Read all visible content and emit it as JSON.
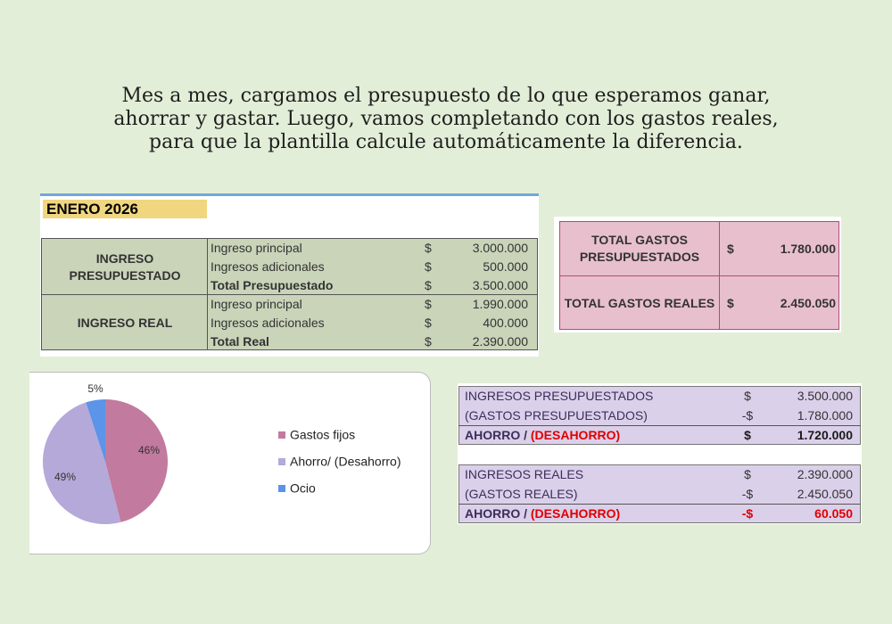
{
  "intro": [
    "Mes a mes, cargamos el presupuesto de lo que esperamos ganar,",
    "ahorrar y gastar. Luego, vamos completando con los gastos reales,",
    "para que la plantilla calcule automáticamente la diferencia."
  ],
  "income_table": {
    "title": "ENERO 2026",
    "groups": [
      {
        "label": "INGRESO PRESUPUESTADO",
        "rows": [
          {
            "label": "Ingreso principal",
            "currency": "$",
            "amount": "3.000.000"
          },
          {
            "label": "Ingresos adicionales",
            "currency": "$",
            "amount": "500.000"
          },
          {
            "label": "Total Presupuestado",
            "currency": "$",
            "amount": "3.500.000"
          }
        ]
      },
      {
        "label": "INGRESO REAL",
        "rows": [
          {
            "label": "Ingreso principal",
            "currency": "$",
            "amount": "1.990.000"
          },
          {
            "label": "Ingresos adicionales",
            "currency": "$",
            "amount": "400.000"
          },
          {
            "label": "Total Real",
            "currency": "$",
            "amount": "2.390.000"
          }
        ]
      }
    ]
  },
  "totals_table": {
    "rows": [
      {
        "label": "TOTAL GASTOS PRESUPUESTADOS",
        "currency": "$",
        "amount": "1.780.000"
      },
      {
        "label": "TOTAL GASTOS REALES",
        "currency": "$",
        "amount": "2.450.050"
      }
    ]
  },
  "summary": {
    "blocks": [
      {
        "rows": [
          {
            "label": "INGRESOS PRESUPUESTADOS",
            "currency": "$",
            "amount": "3.500.000"
          },
          {
            "label": "(GASTOS PRESUPUESTADOS)",
            "currency": "-$",
            "amount": "1.780.000"
          }
        ],
        "result": {
          "label": "AHORRO / ",
          "label_red": "(DESAHORRO)",
          "currency": "$",
          "amount": "1.720.000",
          "color": "#1a1a1a"
        }
      },
      {
        "rows": [
          {
            "label": "INGRESOS REALES",
            "currency": "$",
            "amount": "2.390.000"
          },
          {
            "label": "(GASTOS REALES)",
            "currency": "-$",
            "amount": "2.450.050"
          }
        ],
        "result": {
          "label": "AHORRO / ",
          "label_red": "(DESAHORRO)",
          "currency": "-$",
          "amount": "60.050",
          "color": "#e00000"
        }
      }
    ]
  },
  "chart_data": {
    "type": "pie",
    "categories": [
      "Gastos fijos",
      "Ahorro/ (Desahorro)",
      "Ocio"
    ],
    "values": [
      46,
      49,
      5
    ],
    "value_labels": [
      "46%",
      "49%",
      "5%"
    ],
    "colors": [
      "#c27a9e",
      "#b4a9d8",
      "#5b94e8"
    ]
  }
}
